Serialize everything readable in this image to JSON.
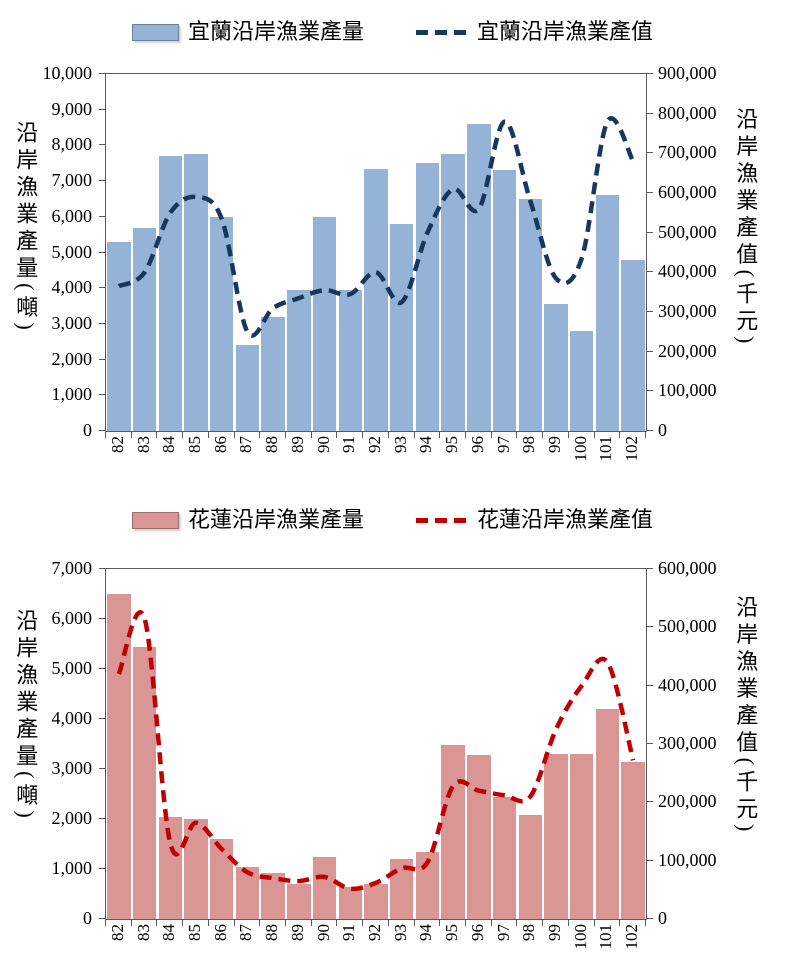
{
  "chart_data": [
    {
      "type": "combo_bar_line",
      "title": "",
      "legend_position": "top",
      "grid": false,
      "categories": [
        "82",
        "83",
        "84",
        "85",
        "86",
        "87",
        "88",
        "89",
        "90",
        "91",
        "92",
        "93",
        "94",
        "95",
        "96",
        "97",
        "98",
        "99",
        "100",
        "101",
        "102"
      ],
      "series": [
        {
          "name": "宜蘭沿岸漁業產量",
          "type": "bar",
          "axis": "left",
          "color": "#95B3D7",
          "values": [
            5300,
            5700,
            7700,
            7750,
            6000,
            2400,
            3200,
            3950,
            6000,
            3950,
            7350,
            5800,
            7500,
            7750,
            8600,
            7300,
            6500,
            3550,
            2800,
            6600,
            4800
          ]
        },
        {
          "name": "宜蘭沿岸漁業產值",
          "type": "line",
          "line_style": "dashed",
          "smoothed": true,
          "axis": "right",
          "color": "#17375E",
          "values": [
            365000,
            400000,
            550000,
            590000,
            535000,
            250000,
            310000,
            335000,
            355000,
            345000,
            400000,
            325000,
            500000,
            610000,
            560000,
            780000,
            580000,
            385000,
            435000,
            780000,
            680000
          ]
        }
      ],
      "left_axis": {
        "title": "沿岸漁業產量(噸)",
        "min": 0,
        "max": 10000,
        "step": 1000,
        "tick_labels": [
          "0",
          "1,000",
          "2,000",
          "3,000",
          "4,000",
          "5,000",
          "6,000",
          "7,000",
          "8,000",
          "9,000",
          "10,000"
        ]
      },
      "right_axis": {
        "title": "沿岸漁業產值(千元)",
        "min": 0,
        "max": 900000,
        "step": 100000,
        "tick_labels": [
          "0",
          "100,000",
          "200,000",
          "300,000",
          "400,000",
          "500,000",
          "600,000",
          "700,000",
          "800,000",
          "900,000"
        ]
      }
    },
    {
      "type": "combo_bar_line",
      "title": "",
      "legend_position": "top",
      "grid": false,
      "categories": [
        "82",
        "83",
        "84",
        "85",
        "86",
        "87",
        "88",
        "89",
        "90",
        "91",
        "92",
        "93",
        "94",
        "95",
        "96",
        "97",
        "98",
        "99",
        "100",
        "101",
        "102"
      ],
      "series": [
        {
          "name": "花蓮沿岸漁業產量",
          "type": "bar",
          "axis": "left",
          "color": "#D99694",
          "values": [
            6500,
            5450,
            2050,
            2000,
            1600,
            1050,
            930,
            700,
            1250,
            650,
            700,
            1200,
            1350,
            3480,
            3280,
            2450,
            2080,
            3300,
            3300,
            4200,
            3150
          ]
        },
        {
          "name": "花蓮沿岸漁業產值",
          "type": "line",
          "line_style": "dashed",
          "smoothed": true,
          "axis": "right",
          "color": "#C00000",
          "values": [
            420000,
            515000,
            130000,
            165000,
            120000,
            80000,
            70000,
            65000,
            72000,
            52000,
            62000,
            87000,
            97000,
            228000,
            220000,
            212000,
            210000,
            325000,
            400000,
            440000,
            272000
          ]
        }
      ],
      "left_axis": {
        "title": "沿岸漁業產量(噸)",
        "min": 0,
        "max": 7000,
        "step": 1000,
        "tick_labels": [
          "0",
          "1,000",
          "2,000",
          "3,000",
          "4,000",
          "5,000",
          "6,000",
          "7,000"
        ]
      },
      "right_axis": {
        "title": "沿岸漁業產值(千元)",
        "min": 0,
        "max": 600000,
        "step": 100000,
        "tick_labels": [
          "0",
          "100,000",
          "200,000",
          "300,000",
          "400,000",
          "500,000",
          "600,000"
        ]
      }
    }
  ]
}
